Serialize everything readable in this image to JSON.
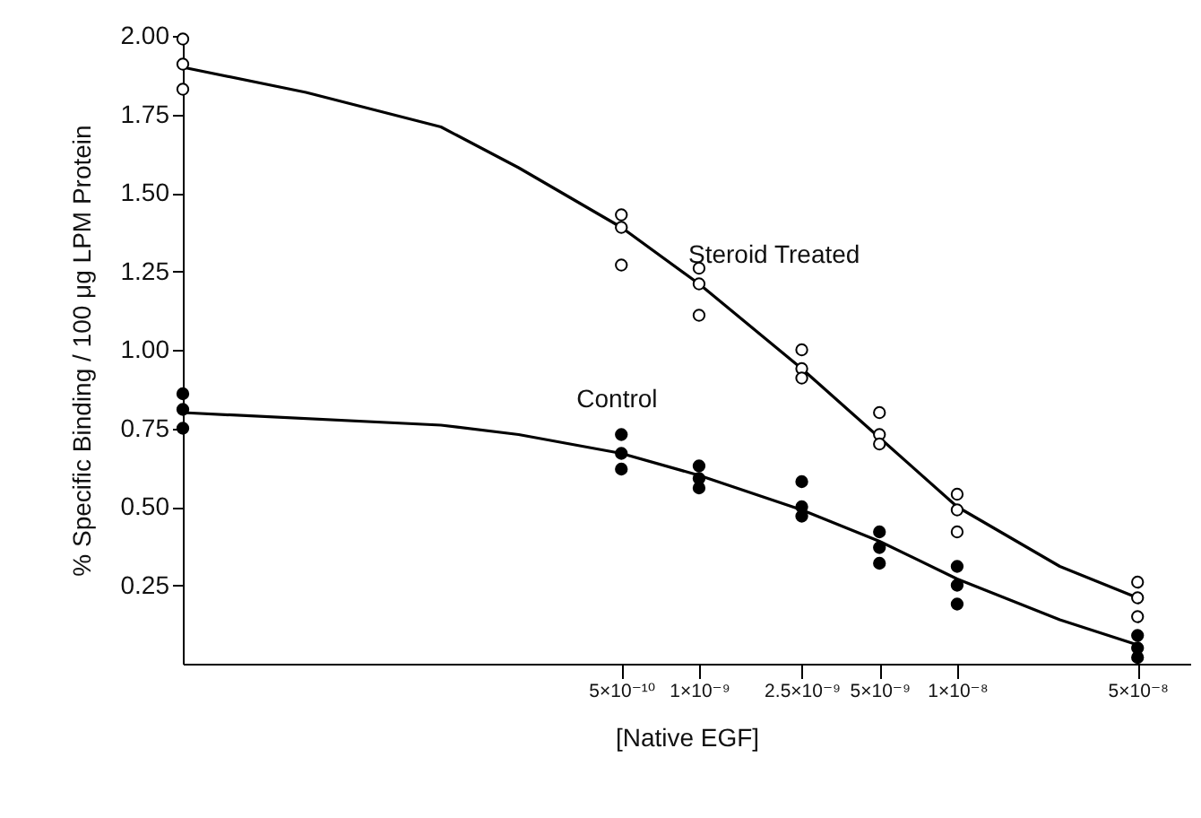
{
  "chart_data": {
    "type": "scatter",
    "xlabel": "[Native EGF]",
    "ylabel": "% Specific Binding / 100 μg LPM Protein",
    "log": "x",
    "marker": "circle",
    "xlim": [
      1e-11,
      8e-08
    ],
    "xticks": [
      {
        "value": 5e-10,
        "label": "5×10⁻¹⁰"
      },
      {
        "value": 1e-09,
        "label": "1×10⁻⁹"
      },
      {
        "value": 2.5e-09,
        "label": "2.5×10⁻⁹"
      },
      {
        "value": 5e-09,
        "label": "5×10⁻⁹"
      },
      {
        "value": 1e-08,
        "label": "1×10⁻⁸"
      },
      {
        "value": 5e-08,
        "label": "5×10⁻⁸"
      }
    ],
    "ylim": [
      0,
      2.0
    ],
    "yticks": [
      {
        "value": 0.25,
        "label": "0.25"
      },
      {
        "value": 0.5,
        "label": "0.50"
      },
      {
        "value": 0.75,
        "label": "0.75"
      },
      {
        "value": 1.0,
        "label": "1.00"
      },
      {
        "value": 1.25,
        "label": "1.25"
      },
      {
        "value": 1.5,
        "label": "1.50"
      },
      {
        "value": 1.75,
        "label": "1.75"
      },
      {
        "value": 2.0,
        "label": "2.00"
      }
    ],
    "series": [
      {
        "name": "Steroid Treated",
        "type": "line",
        "marker": "none",
        "color": "#000000",
        "x": [
          1e-11,
          3e-11,
          1e-10,
          2e-10,
          5e-10,
          1e-09,
          2.5e-09,
          5e-09,
          1e-08,
          2.5e-08,
          5e-08
        ],
        "values": [
          1.9,
          1.82,
          1.71,
          1.58,
          1.39,
          1.21,
          0.94,
          0.72,
          0.5,
          0.31,
          0.21
        ]
      },
      {
        "name": "Control",
        "type": "line",
        "marker": "none",
        "color": "#000000",
        "x": [
          1e-11,
          1e-10,
          2e-10,
          5e-10,
          1e-09,
          2.5e-09,
          5e-09,
          1e-08,
          2.5e-08,
          5e-08
        ],
        "values": [
          0.8,
          0.76,
          0.73,
          0.67,
          0.6,
          0.49,
          0.39,
          0.27,
          0.14,
          0.06
        ]
      },
      {
        "color": "#ffffff",
        "x": [
          1e-11,
          1e-11,
          1e-11,
          5e-10,
          5e-10,
          5e-10,
          1e-09,
          1e-09,
          1e-09,
          2.5e-09,
          2.5e-09,
          2.5e-09,
          5e-09,
          5e-09,
          5e-09,
          1e-08,
          1e-08,
          1e-08,
          5e-08,
          5e-08,
          5e-08
        ],
        "values": [
          1.99,
          1.91,
          1.83,
          1.43,
          1.39,
          1.27,
          1.26,
          1.21,
          1.11,
          1.0,
          0.94,
          0.91,
          0.8,
          0.73,
          0.7,
          0.54,
          0.49,
          0.42,
          0.26,
          0.21,
          0.15
        ]
      },
      {
        "color": "#000000",
        "x": [
          1e-11,
          1e-11,
          1e-11,
          5e-10,
          5e-10,
          5e-10,
          1e-09,
          1e-09,
          1e-09,
          2.5e-09,
          2.5e-09,
          2.5e-09,
          5e-09,
          5e-09,
          5e-09,
          1e-08,
          1e-08,
          1e-08,
          5e-08,
          5e-08,
          5e-08
        ],
        "values": [
          0.86,
          0.81,
          0.75,
          0.73,
          0.67,
          0.62,
          0.63,
          0.59,
          0.56,
          0.58,
          0.5,
          0.47,
          0.42,
          0.37,
          0.32,
          0.31,
          0.25,
          0.19,
          0.09,
          0.05,
          0.02
        ]
      }
    ]
  }
}
